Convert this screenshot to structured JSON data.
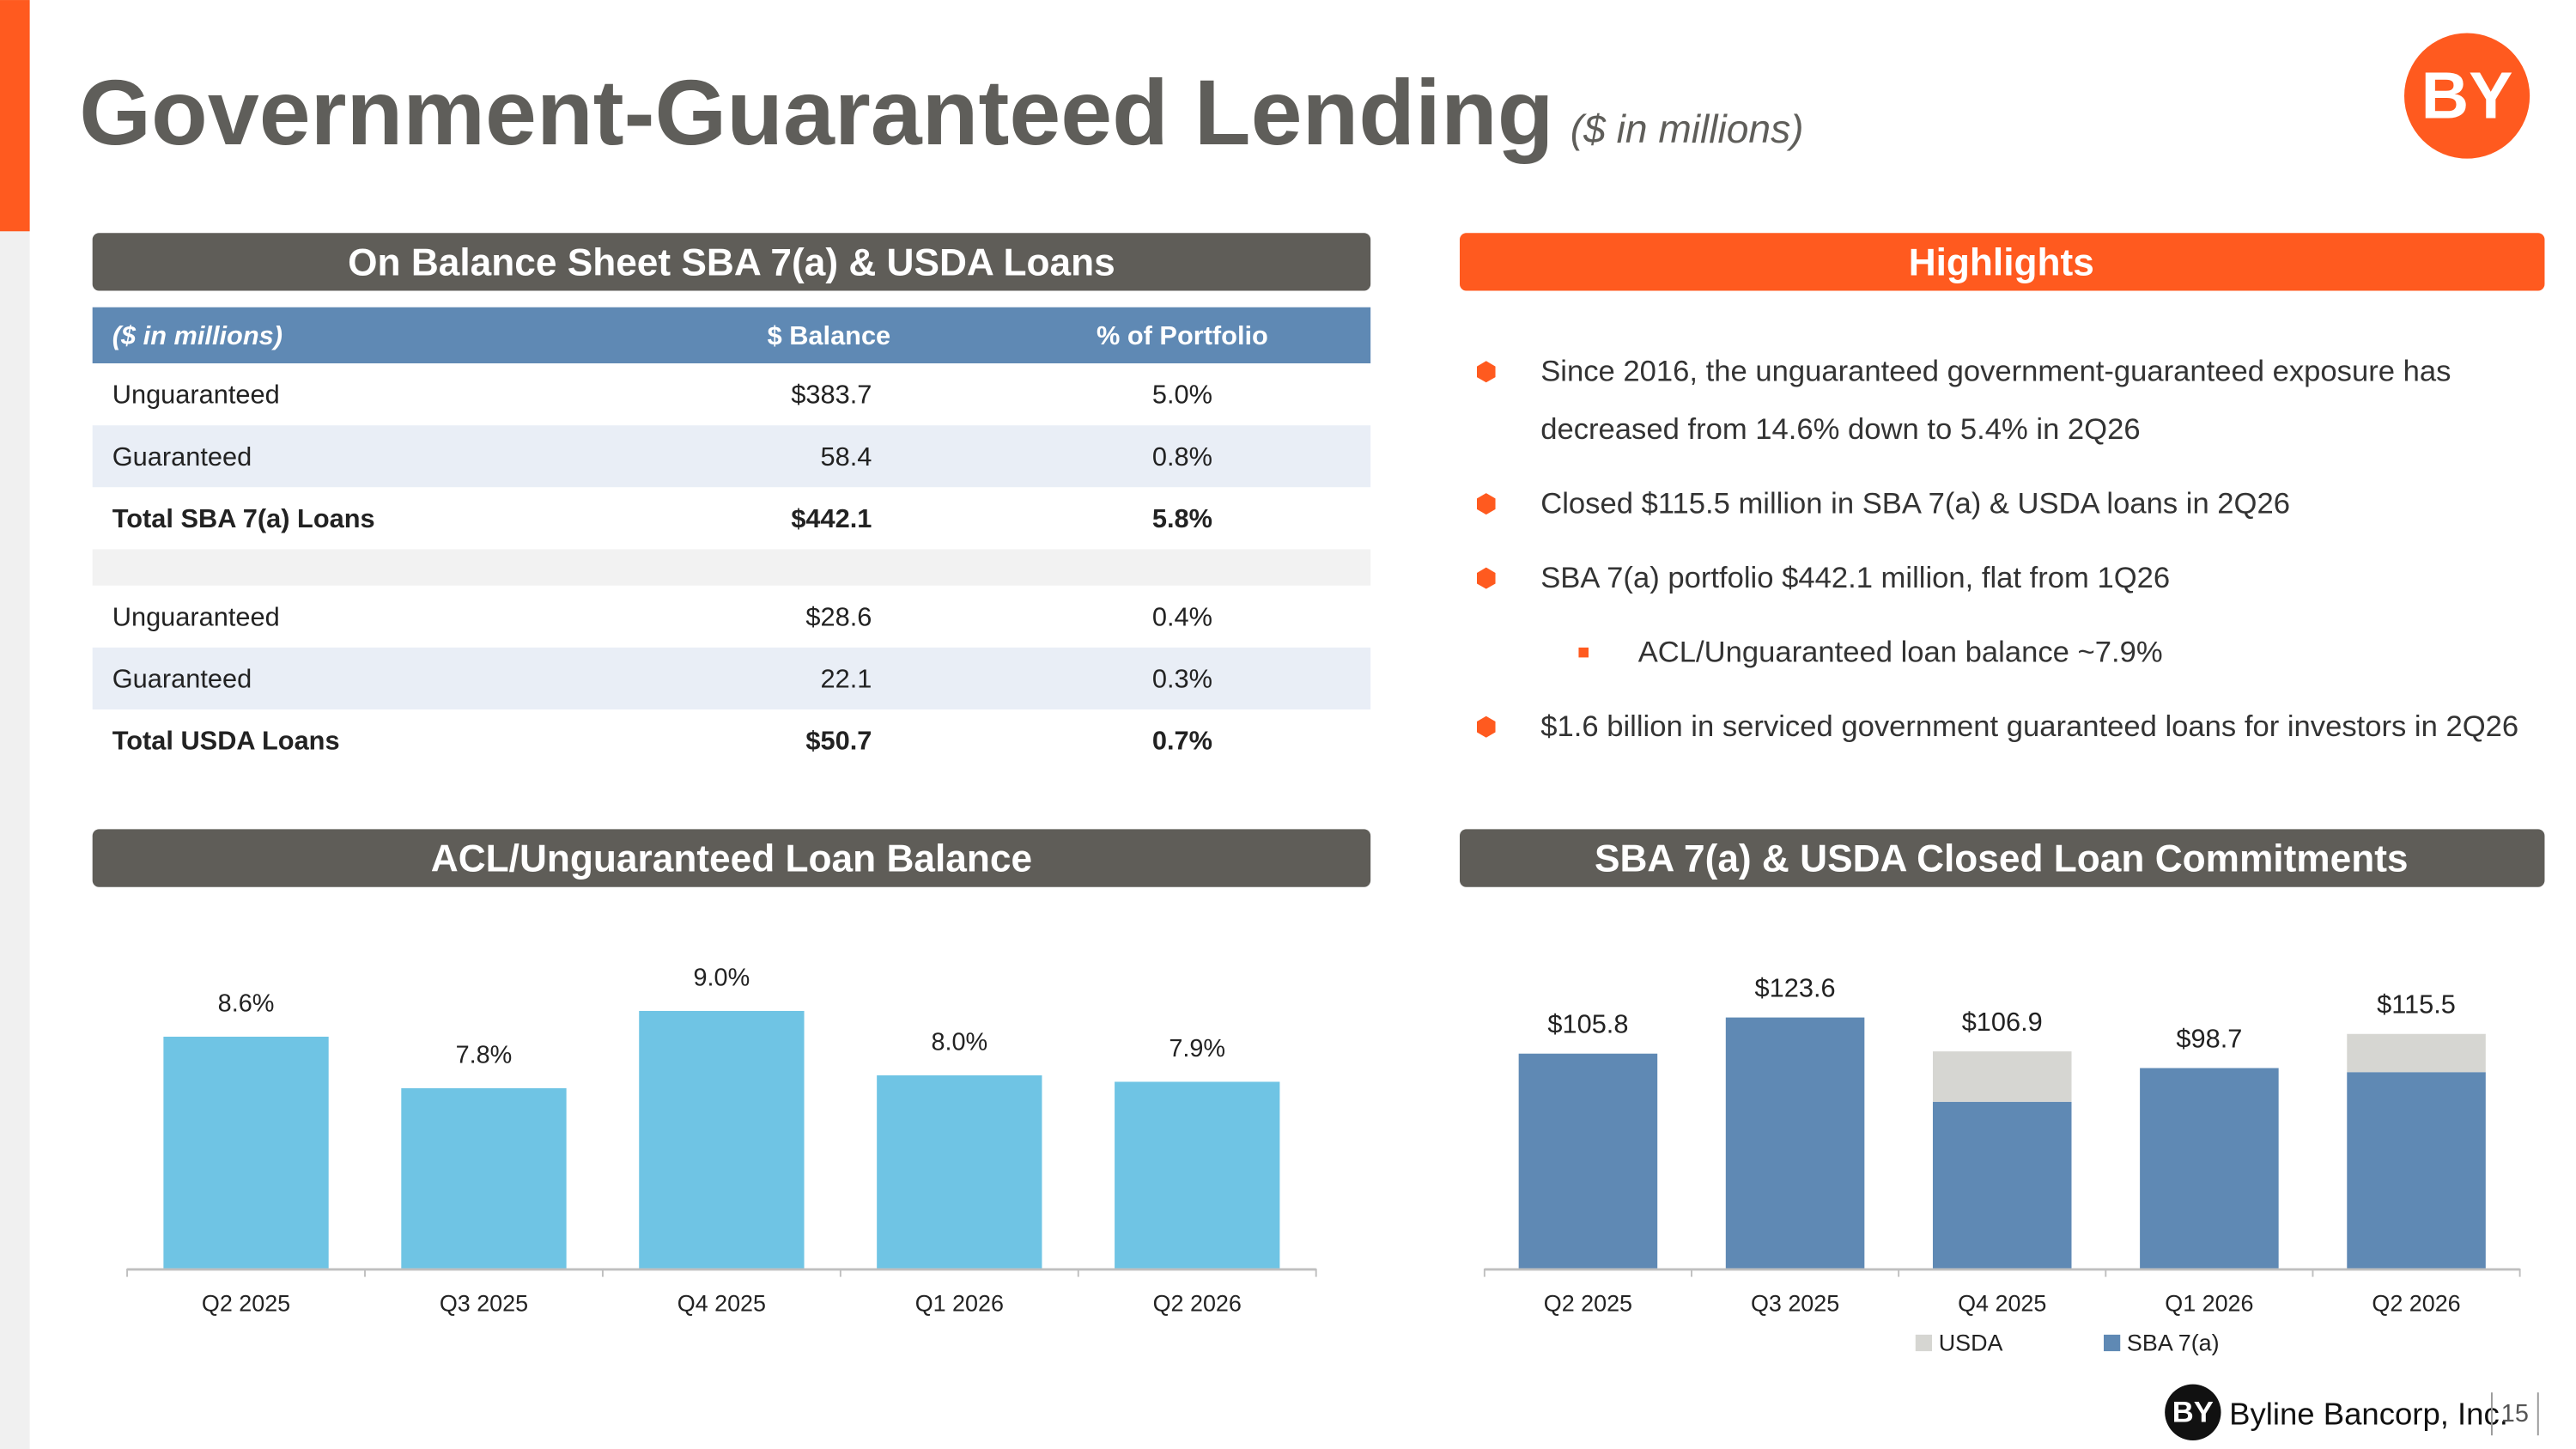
{
  "header": {
    "title": "Government-Guaranteed Lending",
    "subtitle": "($ in millions)",
    "logo_text": "BY"
  },
  "table": {
    "title": "On Balance Sheet SBA 7(a) & USDA Loans",
    "header": [
      "($ in millions)",
      "$ Balance",
      "% of Portfolio"
    ],
    "rows": [
      [
        "Unguaranteed",
        "$383.7",
        "5.0%"
      ],
      [
        "Guaranteed",
        "58.4",
        "0.8%"
      ],
      [
        "Total SBA 7(a) Loans",
        "$442.1",
        "5.8%"
      ],
      [
        "Unguaranteed",
        "$28.6",
        "0.4%"
      ],
      [
        "Guaranteed",
        "22.1",
        "0.3%"
      ],
      [
        "Total USDA Loans",
        "$50.7",
        "0.7%"
      ]
    ]
  },
  "highlights": {
    "title": "Highlights",
    "items": [
      {
        "level": 1,
        "lines": [
          "Since 2016, the unguaranteed government-guaranteed exposure has",
          "decreased from 14.6% down to 5.4% in 2Q26"
        ]
      },
      {
        "level": 1,
        "lines": [
          "Closed $115.5 million in SBA 7(a) & USDA loans in 2Q26"
        ]
      },
      {
        "level": 1,
        "lines": [
          "SBA 7(a) portfolio $442.1 million, flat from 1Q26"
        ]
      },
      {
        "level": 2,
        "lines": [
          "ACL/Unguaranteed loan balance ~7.9%"
        ]
      },
      {
        "level": 1,
        "lines": [
          "$1.6 billion in serviced government guaranteed loans for investors in 2Q26"
        ]
      }
    ]
  },
  "chart_data": [
    {
      "type": "bar",
      "title": "ACL/Unguaranteed Loan Balance",
      "categories": [
        "Q2 2025",
        "Q3 2025",
        "Q4 2025",
        "Q1 2026",
        "Q2 2026"
      ],
      "values": [
        8.6,
        7.8,
        9.0,
        8.0,
        7.9
      ],
      "value_labels": [
        "8.6%",
        "7.8%",
        "9.0%",
        "8.0%",
        "7.9%"
      ],
      "color": "#6fc4e4",
      "ylim": [
        5,
        10
      ]
    },
    {
      "type": "stacked_bar",
      "title": "SBA 7(a) & USDA Closed Loan Commitments",
      "categories": [
        "Q2 2025",
        "Q3 2025",
        "Q4 2025",
        "Q1 2026",
        "Q2 2026"
      ],
      "series": [
        {
          "name": "USDA",
          "color": "#d6d6d2",
          "values": [
            0,
            0,
            24.8,
            0,
            18.8
          ]
        },
        {
          "name": "SBA 7(a)",
          "color": "#5f89b4",
          "values": [
            105.8,
            123.6,
            82.1,
            98.7,
            96.7
          ]
        }
      ],
      "total_labels": [
        "$105.8",
        "$123.6",
        "$106.9",
        "$98.7",
        "$115.5"
      ],
      "ylim": [
        0,
        150
      ],
      "legend": "bottom"
    }
  ],
  "footer": {
    "logo_text": "BY",
    "company": "Byline Bancorp, Inc.",
    "page": "15"
  }
}
